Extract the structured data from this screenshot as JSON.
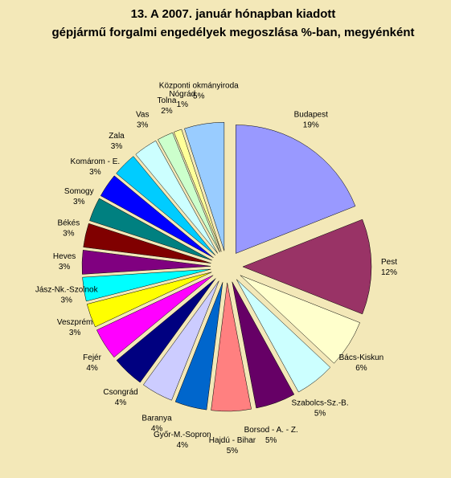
{
  "chart_data": {
    "type": "pie",
    "title_lines": [
      "13. A  2007. január hónapban kiadott",
      "gépjármű forgalmi engedélyek megoszlása %-ban, megyénként"
    ],
    "categories": [
      "Budapest",
      "Pest",
      "Bács-Kiskun",
      "Szabolcs-Sz.-B.",
      "Borsod - A. - Z.",
      "Hajdú - Bihar",
      "Győr-M.-Sopron",
      "Baranya",
      "Csongrád",
      "Fejér",
      "Veszprém",
      "Jász-Nk.-Szolnok",
      "Heves",
      "Békés",
      "Somogy",
      "Komárom - E.",
      "Zala",
      "Vas",
      "Tolna",
      "Nógrád",
      "Központi okmányiroda"
    ],
    "values": [
      19,
      12,
      6,
      5,
      5,
      5,
      4,
      4,
      4,
      4,
      3,
      3,
      3,
      3,
      3,
      3,
      3,
      3,
      2,
      1,
      5
    ],
    "value_labels": [
      "19%",
      "12%",
      "6%",
      "5%",
      "5%",
      "5%",
      "4%",
      "4%",
      "4%",
      "4%",
      "3%",
      "3%",
      "3%",
      "3%",
      "3%",
      "3%",
      "3%",
      "3%",
      "2%",
      "1%",
      "5%"
    ],
    "colors": [
      "#9999ff",
      "#993366",
      "#ffffcc",
      "#ccffff",
      "#660066",
      "#ff8080",
      "#0066cc",
      "#ccccff",
      "#000080",
      "#ff00ff",
      "#ffff00",
      "#00ffff",
      "#800080",
      "#800000",
      "#008080",
      "#0000ff",
      "#00ccff",
      "#ccffff",
      "#ccffcc",
      "#ffff99",
      "#99ccff"
    ]
  }
}
